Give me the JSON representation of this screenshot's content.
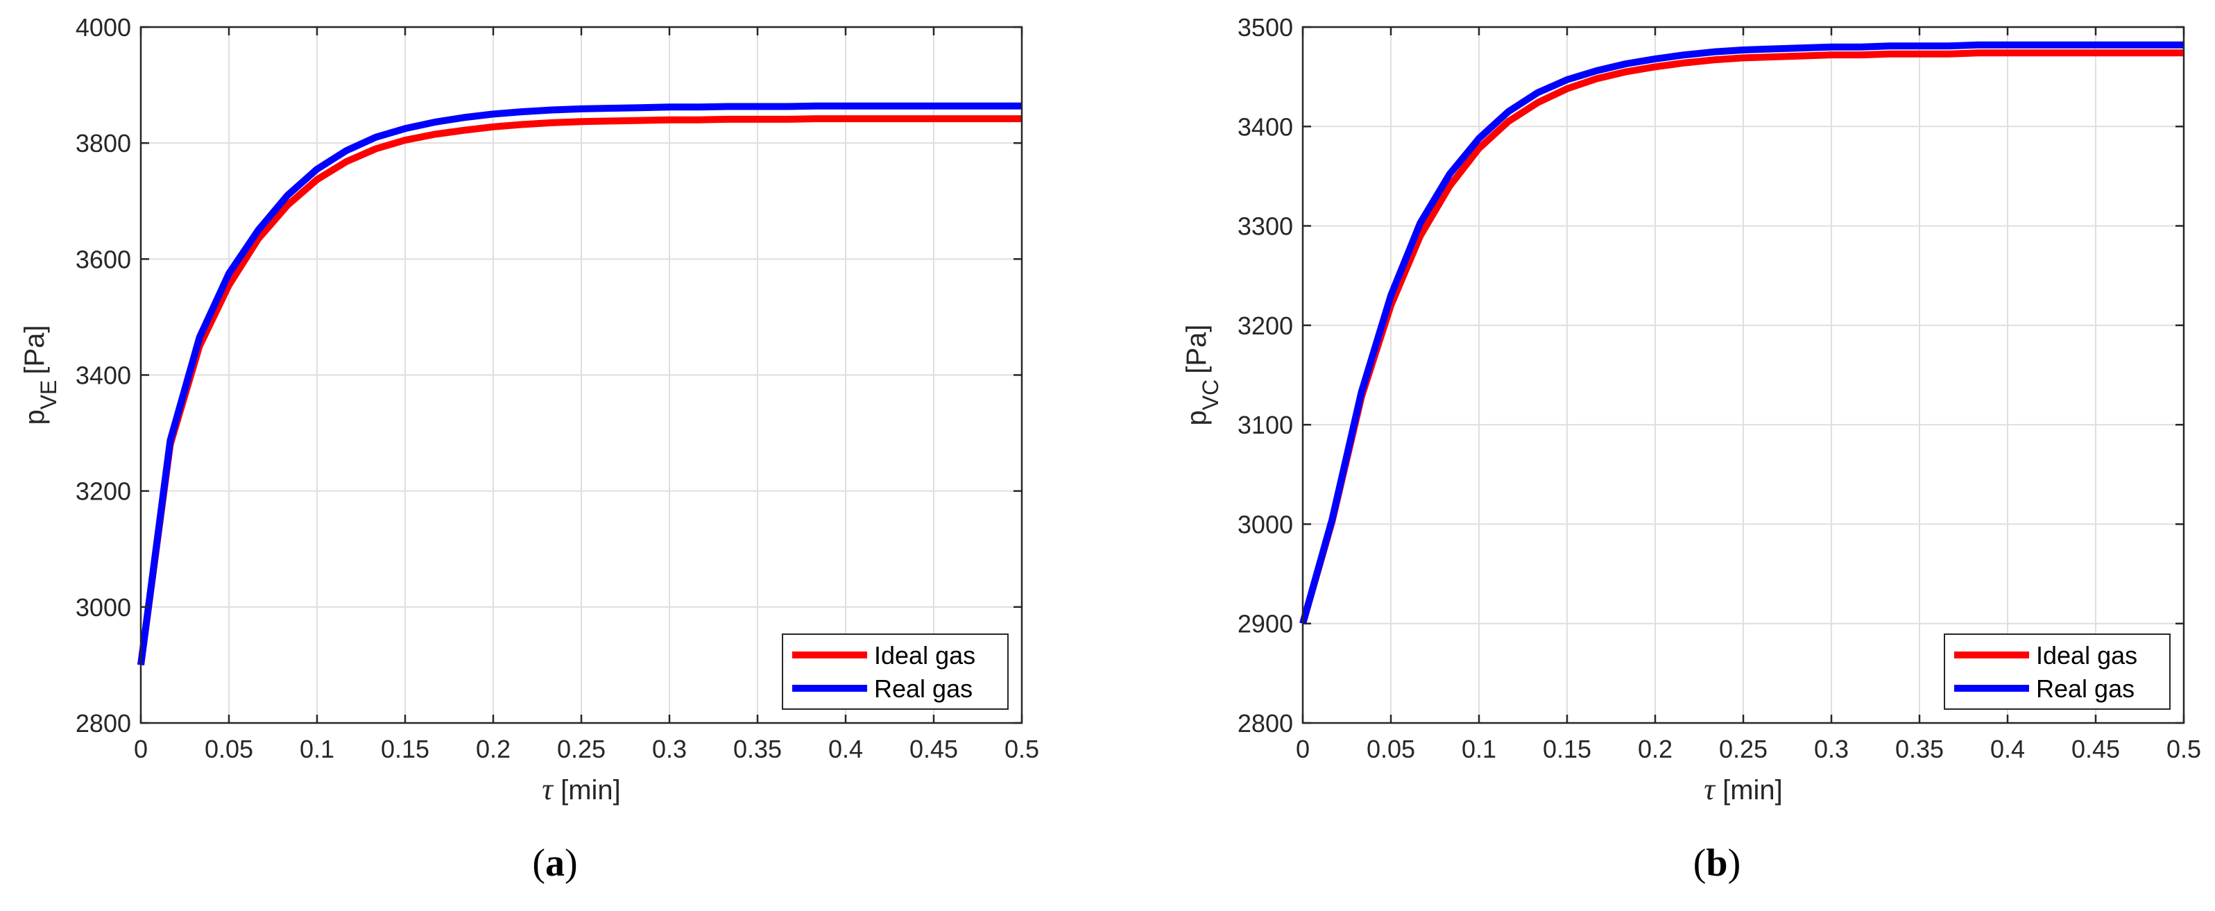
{
  "chart_data": [
    {
      "type": "line",
      "xlabel_symbol": "τ",
      "xlabel_unit": "[min]",
      "ylabel_main": "p",
      "ylabel_sub": "VE",
      "ylabel_unit": "[Pa]",
      "xlim": [
        0,
        0.5
      ],
      "ylim": [
        2800,
        4000
      ],
      "xticks": [
        0,
        0.05,
        0.1,
        0.15,
        0.2,
        0.25,
        0.3,
        0.35,
        0.4,
        0.45,
        0.5
      ],
      "xtick_labels": [
        "0",
        "0.05",
        "0.1",
        "0.15",
        "0.2",
        "0.25",
        "0.3",
        "0.35",
        "0.4",
        "0.45",
        "0.5"
      ],
      "yticks": [
        2800,
        3000,
        3200,
        3400,
        3600,
        3800,
        4000
      ],
      "ytick_labels": [
        "2800",
        "3000",
        "3200",
        "3400",
        "3600",
        "3800",
        "4000"
      ],
      "grid": true,
      "legend_position": "bottom-right",
      "caption_letter": "a",
      "series": [
        {
          "name": "Ideal gas",
          "color": "#ff0000",
          "x": [
            0,
            0.0167,
            0.0333,
            0.05,
            0.0667,
            0.0833,
            0.1,
            0.1167,
            0.1333,
            0.15,
            0.1667,
            0.1833,
            0.2,
            0.2167,
            0.2333,
            0.25,
            0.2667,
            0.2833,
            0.3,
            0.3167,
            0.3333,
            0.35,
            0.3667,
            0.3833,
            0.4,
            0.4167,
            0.4333,
            0.45,
            0.4667,
            0.4833,
            0.5
          ],
          "y": [
            2900,
            3280,
            3450,
            3555,
            3635,
            3693,
            3737,
            3768,
            3790,
            3805,
            3815,
            3822,
            3828,
            3832,
            3835,
            3837,
            3838,
            3839,
            3840,
            3840,
            3841,
            3841,
            3841,
            3842,
            3842,
            3842,
            3842,
            3842,
            3842,
            3842,
            3842
          ]
        },
        {
          "name": "Real gas",
          "color": "#0000ff",
          "x": [
            0,
            0.0167,
            0.0333,
            0.05,
            0.0667,
            0.0833,
            0.1,
            0.1167,
            0.1333,
            0.15,
            0.1667,
            0.1833,
            0.2,
            0.2167,
            0.2333,
            0.25,
            0.2667,
            0.2833,
            0.3,
            0.3167,
            0.3333,
            0.35,
            0.3667,
            0.3833,
            0.4,
            0.4167,
            0.4333,
            0.45,
            0.4667,
            0.4833,
            0.5
          ],
          "y": [
            2900,
            3287,
            3465,
            3575,
            3650,
            3710,
            3755,
            3787,
            3810,
            3825,
            3836,
            3844,
            3850,
            3854,
            3857,
            3859,
            3860,
            3861,
            3862,
            3862,
            3863,
            3863,
            3863,
            3864,
            3864,
            3864,
            3864,
            3864,
            3864,
            3864,
            3864
          ]
        }
      ]
    },
    {
      "type": "line",
      "xlabel_symbol": "τ",
      "xlabel_unit": "[min]",
      "ylabel_main": "p",
      "ylabel_sub": "VC",
      "ylabel_unit": "[Pa]",
      "xlim": [
        0,
        0.5
      ],
      "ylim": [
        2800,
        3500
      ],
      "xticks": [
        0,
        0.05,
        0.1,
        0.15,
        0.2,
        0.25,
        0.3,
        0.35,
        0.4,
        0.45,
        0.5
      ],
      "xtick_labels": [
        "0",
        "0.05",
        "0.1",
        "0.15",
        "0.2",
        "0.25",
        "0.3",
        "0.35",
        "0.4",
        "0.45",
        "0.5"
      ],
      "yticks": [
        2800,
        2900,
        3000,
        3100,
        3200,
        3300,
        3400,
        3500
      ],
      "ytick_labels": [
        "2800",
        "2900",
        "3000",
        "3100",
        "3200",
        "3300",
        "3400",
        "3500"
      ],
      "grid": true,
      "legend_position": "bottom-right",
      "caption_letter": "b",
      "series": [
        {
          "name": "Ideal gas",
          "color": "#ff0000",
          "x": [
            0,
            0.0167,
            0.0333,
            0.05,
            0.0667,
            0.0833,
            0.1,
            0.1167,
            0.1333,
            0.15,
            0.1667,
            0.1833,
            0.2,
            0.2167,
            0.2333,
            0.25,
            0.2667,
            0.2833,
            0.3,
            0.3167,
            0.3333,
            0.35,
            0.3667,
            0.3833,
            0.4,
            0.4167,
            0.4333,
            0.45,
            0.4667,
            0.4833,
            0.5
          ],
          "y": [
            2900,
            3003,
            3128,
            3220,
            3290,
            3340,
            3378,
            3405,
            3424,
            3438,
            3448,
            3455,
            3460,
            3464,
            3467,
            3469,
            3470,
            3471,
            3472,
            3472,
            3473,
            3473,
            3473,
            3474,
            3474,
            3474,
            3474,
            3474,
            3474,
            3474,
            3474
          ]
        },
        {
          "name": "Real gas",
          "color": "#0000ff",
          "x": [
            0,
            0.0167,
            0.0333,
            0.05,
            0.0667,
            0.0833,
            0.1,
            0.1167,
            0.1333,
            0.15,
            0.1667,
            0.1833,
            0.2,
            0.2167,
            0.2333,
            0.25,
            0.2667,
            0.2833,
            0.3,
            0.3167,
            0.3333,
            0.35,
            0.3667,
            0.3833,
            0.4,
            0.4167,
            0.4333,
            0.45,
            0.4667,
            0.4833,
            0.5
          ],
          "y": [
            2900,
            3005,
            3133,
            3230,
            3303,
            3352,
            3388,
            3415,
            3434,
            3447,
            3456,
            3463,
            3468,
            3472,
            3475,
            3477,
            3478,
            3479,
            3480,
            3480,
            3481,
            3481,
            3481,
            3482,
            3482,
            3482,
            3482,
            3482,
            3482,
            3482,
            3482
          ]
        }
      ]
    }
  ]
}
